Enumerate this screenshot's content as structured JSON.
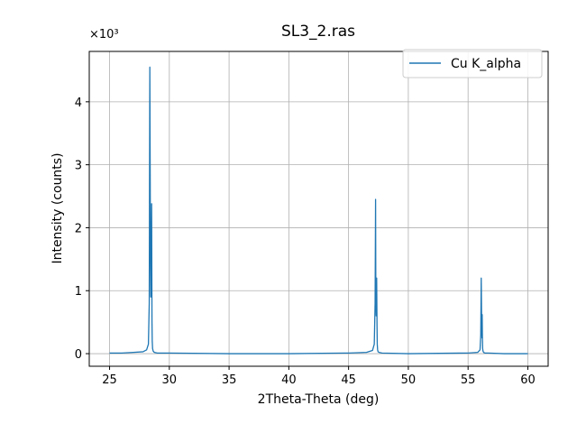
{
  "chart_data": {
    "type": "line",
    "title": "SL3_2.ras",
    "xlabel": "2Theta-Theta (deg)",
    "ylabel": "Intensity (counts)",
    "y_multiplier_label": "×10³",
    "xlim": [
      23.3,
      61.7
    ],
    "ylim": [
      -0.2,
      4.8
    ],
    "x_ticks": [
      25,
      30,
      35,
      40,
      45,
      50,
      55,
      60
    ],
    "x_tick_labels": [
      "25",
      "30",
      "35",
      "40",
      "45",
      "50",
      "55",
      "60"
    ],
    "y_ticks": [
      0,
      1,
      2,
      3,
      4
    ],
    "y_tick_labels": [
      "0",
      "1",
      "2",
      "3",
      "4"
    ],
    "grid": true,
    "legend": "upper-right",
    "color": "#1f77b4",
    "series": [
      {
        "name": "Cu K_alpha",
        "x": [
          25.0,
          26.0,
          27.0,
          27.8,
          28.1,
          28.25,
          28.32,
          28.37,
          28.42,
          28.45,
          28.49,
          28.52,
          28.55,
          28.57,
          28.6,
          28.65,
          28.75,
          29.0,
          30.0,
          35.0,
          40.0,
          45.0,
          46.5,
          47.0,
          47.15,
          47.22,
          47.26,
          47.28,
          47.31,
          47.35,
          47.38,
          47.4,
          47.43,
          47.47,
          47.55,
          47.8,
          50.0,
          55.0,
          55.8,
          56.0,
          56.06,
          56.1,
          56.13,
          56.16,
          56.18,
          56.2,
          56.22,
          56.25,
          56.3,
          56.4,
          56.7,
          58.0,
          60.0
        ],
        "values": [
          0.01,
          0.01,
          0.02,
          0.03,
          0.06,
          0.15,
          0.8,
          4.55,
          1.6,
          0.9,
          1.5,
          2.38,
          0.5,
          0.2,
          0.08,
          0.04,
          0.02,
          0.01,
          0.01,
          0.0,
          0.0,
          0.01,
          0.02,
          0.05,
          0.15,
          0.8,
          2.45,
          1.0,
          0.6,
          1.2,
          0.45,
          0.15,
          0.06,
          0.03,
          0.02,
          0.01,
          0.0,
          0.01,
          0.02,
          0.06,
          0.3,
          1.2,
          0.6,
          0.25,
          0.62,
          0.25,
          0.08,
          0.04,
          0.02,
          0.01,
          0.01,
          0.0,
          0.0
        ]
      }
    ]
  }
}
